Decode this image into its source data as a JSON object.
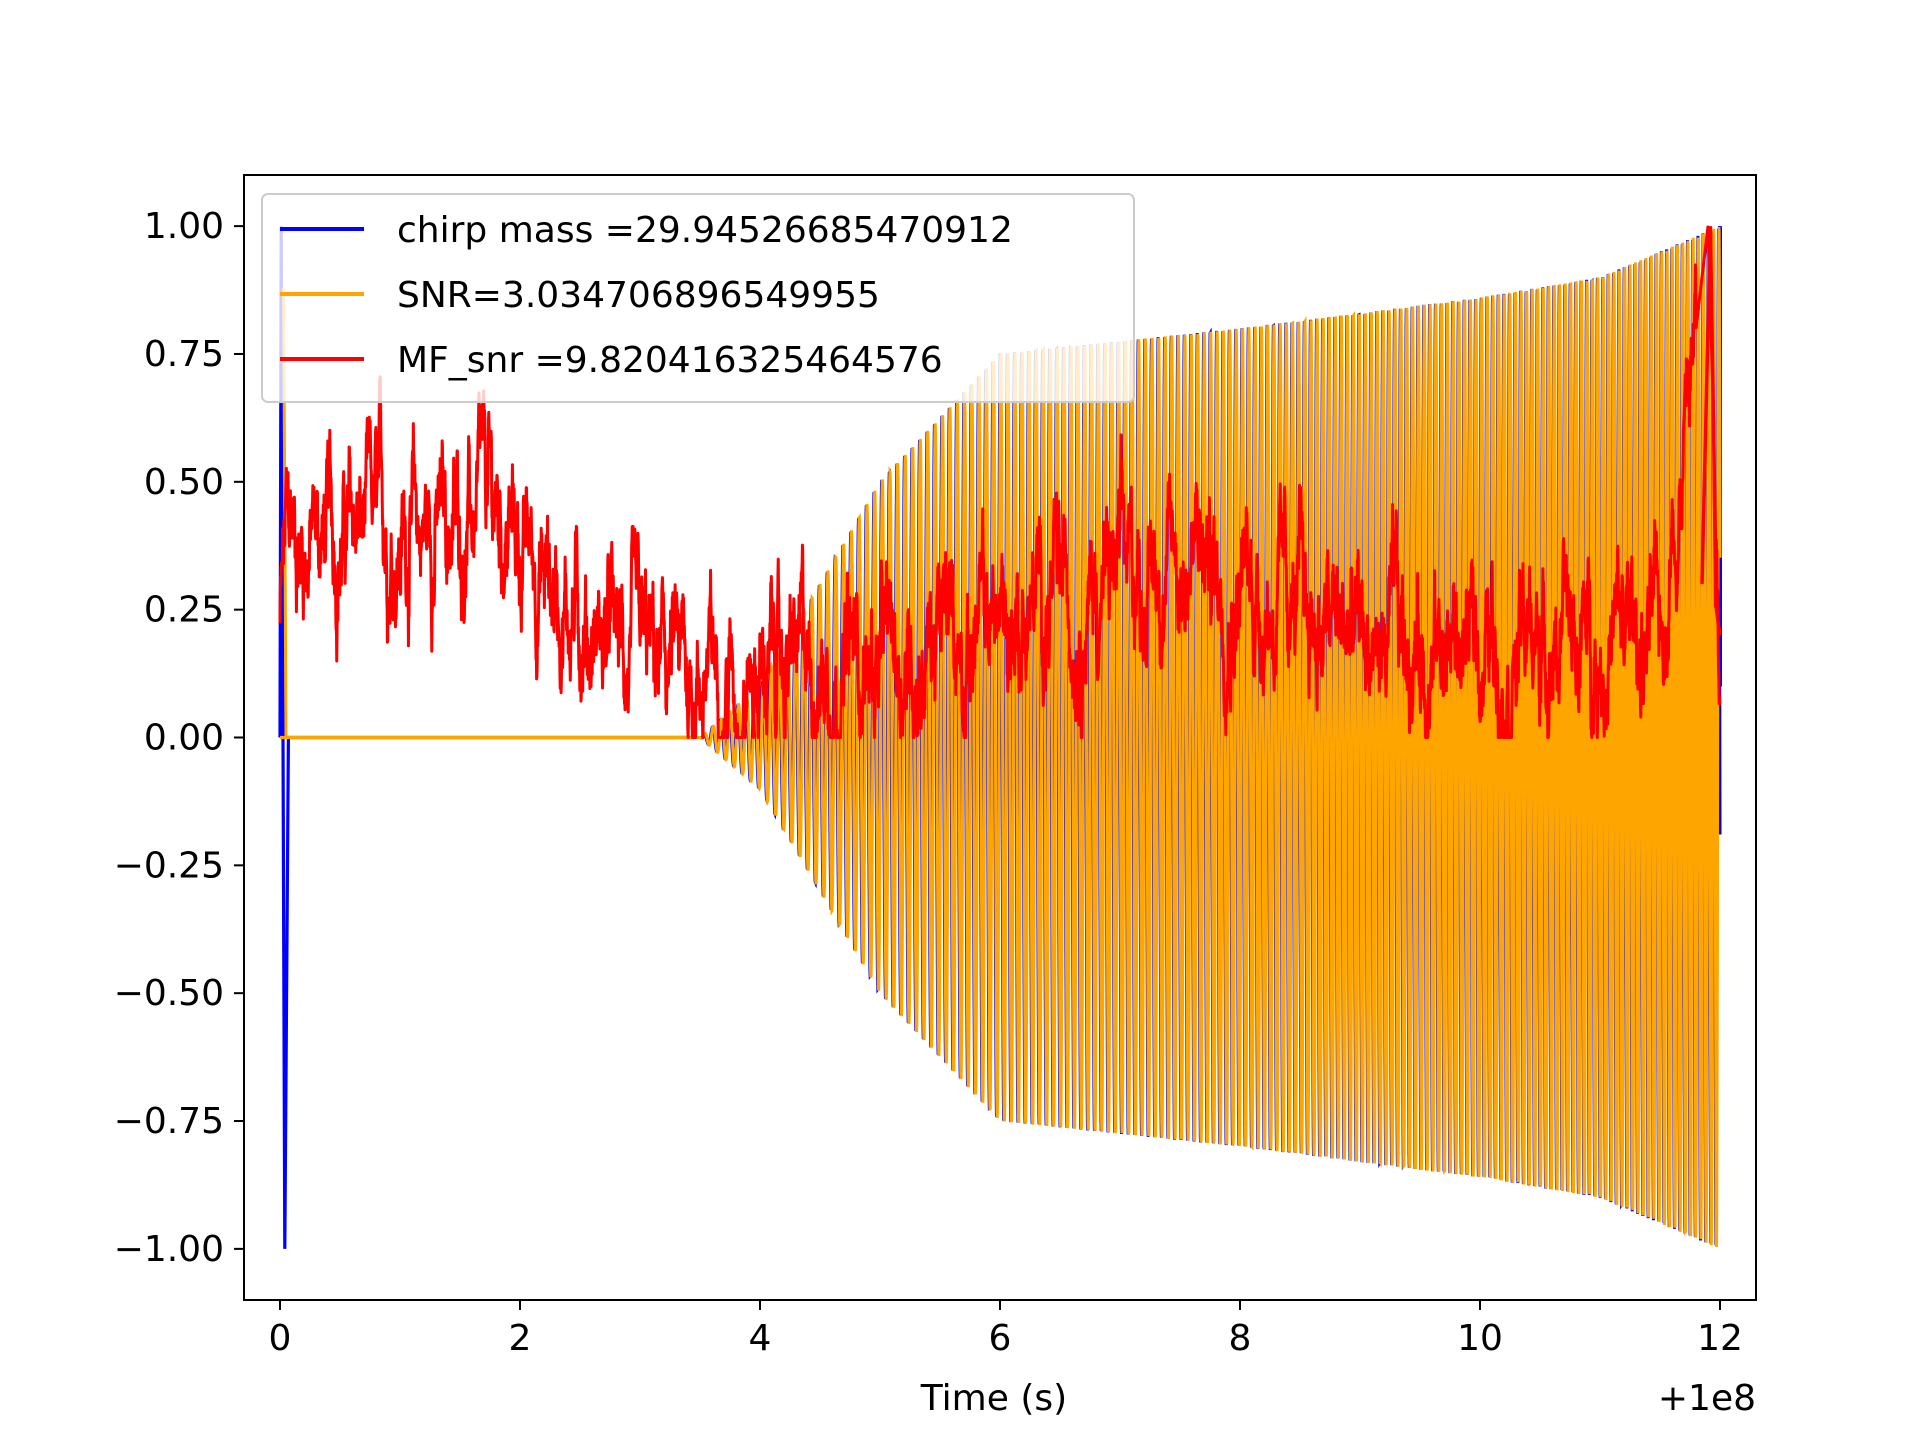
{
  "chart_data": {
    "type": "line",
    "title": "",
    "xlabel": "Time (s)",
    "ylabel": "",
    "x_offset_label": "+1e8",
    "xlim": [
      -0.3,
      12.3
    ],
    "ylim": [
      -1.1,
      1.1
    ],
    "x_ticks": [
      0,
      2,
      4,
      6,
      8,
      10,
      12
    ],
    "x_tick_labels": [
      "0",
      "2",
      "4",
      "6",
      "8",
      "10",
      "12"
    ],
    "y_ticks": [
      1.0,
      0.75,
      0.5,
      0.25,
      0.0,
      -0.25,
      -0.5,
      -0.75,
      -1.0
    ],
    "y_tick_labels": [
      "1.00",
      "0.75",
      "0.50",
      "0.25",
      "0.00",
      "−0.25",
      "−0.50",
      "−0.75",
      "−1.00"
    ],
    "grid": false,
    "legend_position": "top-left",
    "series": [
      {
        "name": "chirp mass =29.94526685470912",
        "color": "#0000ff",
        "description_points": {
          "x": [
            0.0,
            0.02,
            0.05,
            3.5,
            4.0,
            5.0,
            6.0,
            8.0,
            10.0,
            11.0,
            12.0
          ],
          "envelope": [
            0.0,
            1.0,
            -1.0,
            0.0,
            0.1,
            0.5,
            0.75,
            0.8,
            0.86,
            0.9,
            1.0
          ]
        }
      },
      {
        "name": "SNR=3.034706896549955",
        "color": "#ffa500",
        "description_points": {
          "x": [
            0.0,
            3.5,
            4.0,
            5.0,
            6.0,
            8.0,
            10.0,
            11.0,
            12.0
          ],
          "envelope": [
            0.0,
            0.0,
            0.1,
            0.5,
            0.75,
            0.8,
            0.86,
            0.9,
            1.0
          ]
        }
      },
      {
        "name": "MF_snr =9.820416325464576",
        "color": "#ff0000",
        "description_points": {
          "x": [
            0.0,
            0.05,
            1.2,
            1.8,
            3.0,
            5.0,
            7.6,
            9.0,
            11.5,
            11.9,
            12.0
          ],
          "y": [
            0.22,
            0.39,
            0.41,
            0.43,
            0.12,
            0.15,
            0.36,
            0.18,
            0.2,
            1.0,
            0.2
          ]
        }
      }
    ]
  }
}
